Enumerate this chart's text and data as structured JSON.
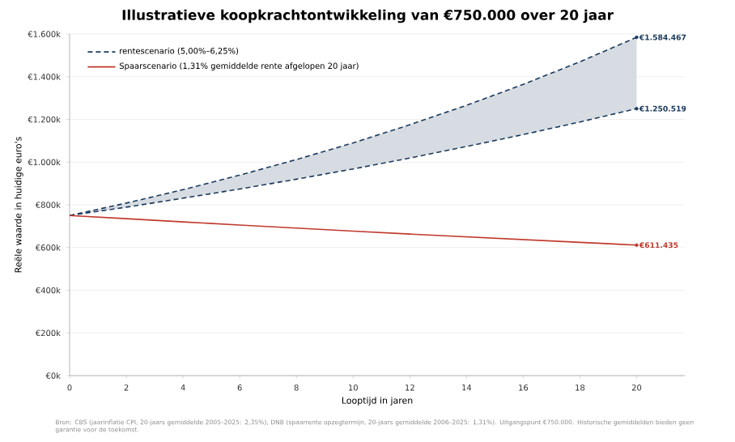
{
  "chart_data": {
    "type": "line",
    "title": "Illustratieve koopkrachtontwikkeling van €750.000 over 20 jaar",
    "xlabel": "Looptijd in jaren",
    "ylabel": "Reële waarde in huidige euro's",
    "x": [
      0,
      2,
      4,
      6,
      8,
      10,
      12,
      14,
      16,
      18,
      20
    ],
    "series": [
      {
        "name": "rentescenario (5,00%–6,25%)",
        "color": "#1b3a5c",
        "line_style": "dashed",
        "values": [
          750000,
          808000,
          871000,
          939000,
          1012000,
          1090000,
          1175000,
          1266000,
          1364000,
          1470000,
          1584467
        ],
        "value_labels": [
          null,
          null,
          null,
          null,
          null,
          null,
          null,
          null,
          null,
          null,
          "€1.584.467"
        ],
        "lower": [
          750000,
          789000,
          831000,
          874000,
          920000,
          968000,
          1019000,
          1073000,
          1129000,
          1188000,
          1250519
        ],
        "upper": [
          750000,
          808000,
          871000,
          939000,
          1012000,
          1090000,
          1175000,
          1266000,
          1364000,
          1470000,
          1584467
        ]
      },
      {
        "color": "#1b3a5c",
        "line_style": "dashed",
        "values": [
          750000,
          789000,
          831000,
          874000,
          920000,
          968000,
          1019000,
          1073000,
          1129000,
          1188000,
          1250519
        ],
        "value_labels": [
          null,
          null,
          null,
          null,
          null,
          null,
          null,
          null,
          null,
          null,
          "€1.250.519"
        ]
      },
      {
        "name": "Spaarscenario (1,31% gemiddelde rente afgelopen 20 jaar)",
        "color": "#c0392b",
        "line_style": "solid",
        "values": [
          750000,
          735000,
          720000,
          705000,
          691000,
          677000,
          663000,
          650000,
          637000,
          624000,
          611435
        ],
        "value_labels": [
          null,
          null,
          null,
          null,
          null,
          null,
          null,
          null,
          null,
          null,
          "€611.435"
        ]
      }
    ],
    "annotations": [
      "Bron: CBS (jaarinflatie CPI, 20-jaars gemiddelde 2005–2025: 2,35%), DNB (spaarrente opzegtermijn, 20-jaars gemiddelde 2006–2025: 1,31%). Uitgangspunt €750.000. Historische gemiddelden bieden geen garantie voor de toekomst."
    ],
    "xlim": [
      0,
      21.7
    ],
    "ylim": [
      0,
      1600000
    ],
    "xticks": [
      0,
      2,
      4,
      6,
      8,
      10,
      12,
      14,
      16,
      18,
      20
    ],
    "yticks": [
      {
        "value": 0,
        "label": "€0k"
      },
      {
        "value": 200000,
        "label": "€200k"
      },
      {
        "value": 400000,
        "label": "€400k"
      },
      {
        "value": 600000,
        "label": "€600k"
      },
      {
        "value": 800000,
        "label": "€800k"
      },
      {
        "value": 1000000,
        "label": "€1.000k"
      },
      {
        "value": 1200000,
        "label": "€1.200k"
      },
      {
        "value": 1400000,
        "label": "€1.400k"
      },
      {
        "value": 1600000,
        "label": "€1.600k"
      }
    ],
    "grid": "y",
    "legend": "top left"
  }
}
